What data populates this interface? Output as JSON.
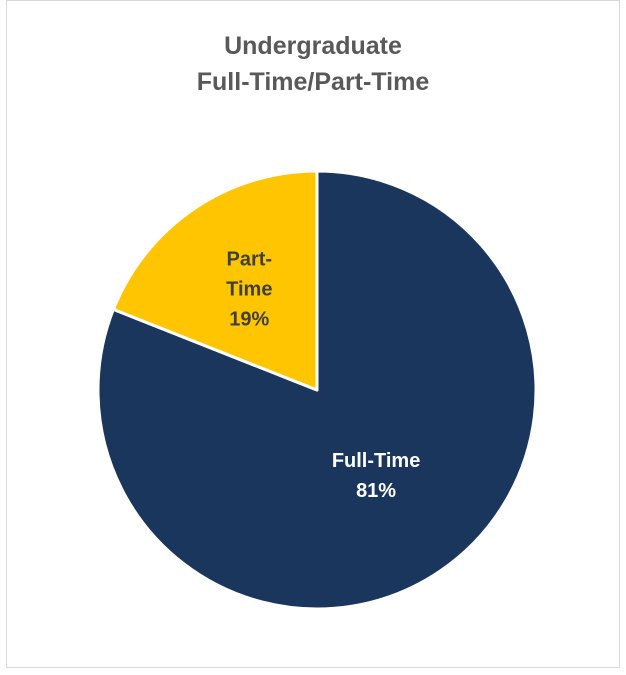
{
  "chart_data": {
    "type": "pie",
    "title_lines": [
      "Undergraduate",
      "Full-Time/Part-Time"
    ],
    "slices": [
      {
        "label_lines": [
          "Full-Time",
          "81%"
        ],
        "value": 81,
        "color": "#1b365d",
        "label_color": "#ffffff"
      },
      {
        "label_lines": [
          "Part-",
          "Time",
          "19%"
        ],
        "value": 19,
        "color": "#ffc600",
        "label_color": "#404040"
      }
    ]
  }
}
